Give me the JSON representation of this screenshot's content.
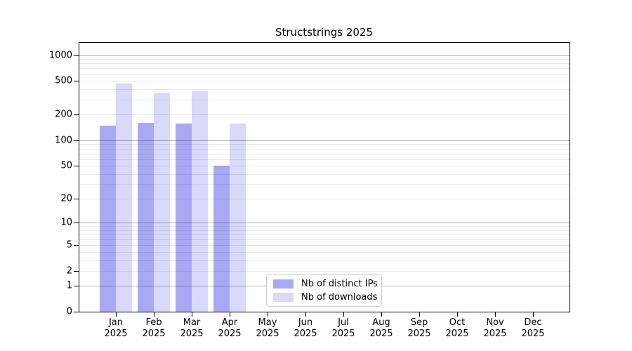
{
  "title": "Structstrings 2025",
  "chart_data": {
    "type": "bar",
    "title": "Structstrings 2025",
    "categories": [
      "Jan",
      "Feb",
      "Mar",
      "Apr",
      "May",
      "Jun",
      "Jul",
      "Aug",
      "Sep",
      "Oct",
      "Nov",
      "Dec"
    ],
    "year_label": "2025",
    "series": [
      {
        "name": "Nb of distinct IPs",
        "color": "#a8a8f5",
        "values": [
          150,
          160,
          157,
          50,
          null,
          null,
          null,
          null,
          null,
          null,
          null,
          null
        ]
      },
      {
        "name": "Nb of downloads",
        "color": "#d9d9fa",
        "values": [
          465,
          364,
          383,
          158,
          null,
          null,
          null,
          null,
          null,
          null,
          null,
          null
        ]
      }
    ],
    "xlabel": "",
    "ylabel": "",
    "scale": "log1p",
    "ylim": [
      0,
      1421
    ],
    "yticks": [
      0,
      1,
      2,
      5,
      10,
      20,
      50,
      100,
      200,
      500,
      1000
    ],
    "major_gridlines": [
      1,
      10,
      100,
      1000
    ],
    "minor_gridlines": [
      2,
      3,
      4,
      5,
      6,
      7,
      8,
      9,
      20,
      30,
      40,
      50,
      60,
      70,
      80,
      90,
      200,
      300,
      400,
      500,
      600,
      700,
      800,
      900
    ],
    "grid": true,
    "legend_position": "lower-center-left"
  },
  "colors": {
    "background": "#ffffff",
    "spine": "#000000",
    "text": "#000000",
    "legend_border": "#cccccc",
    "bar_distinct_ips": "#a8a8f5",
    "bar_downloads": "#d9d9fa"
  }
}
